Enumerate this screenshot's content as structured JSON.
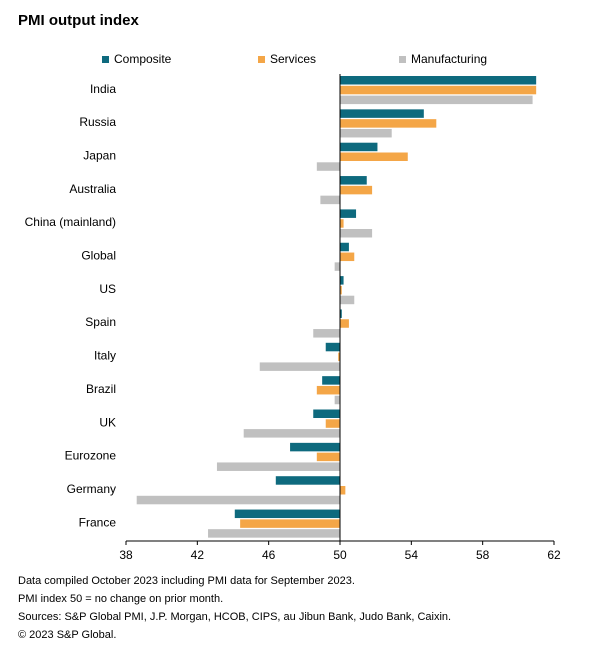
{
  "title": "PMI output index",
  "colors": {
    "composite": "#0e6a7e",
    "services": "#f4a647",
    "manufacturing": "#c0c0c0",
    "axis": "#000000"
  },
  "chart_data": {
    "type": "bar",
    "orientation": "horizontal",
    "title": "PMI output index",
    "categories": [
      "India",
      "Russia",
      "Japan",
      "Australia",
      "China (mainland)",
      "Global",
      "US",
      "Spain",
      "Italy",
      "Brazil",
      "UK",
      "Eurozone",
      "Germany",
      "France"
    ],
    "series": [
      {
        "name": "Composite",
        "values": [
          61.0,
          54.7,
          52.1,
          51.5,
          50.9,
          50.5,
          50.2,
          50.1,
          49.2,
          49.0,
          48.5,
          47.2,
          46.4,
          44.1
        ]
      },
      {
        "name": "Services",
        "values": [
          61.0,
          55.4,
          53.8,
          51.8,
          50.2,
          50.8,
          50.1,
          50.5,
          49.9,
          48.7,
          49.2,
          48.7,
          50.3,
          44.4
        ]
      },
      {
        "name": "Manufacturing",
        "values": [
          60.8,
          52.9,
          48.7,
          48.9,
          51.8,
          49.7,
          50.8,
          48.5,
          45.5,
          49.7,
          44.6,
          43.1,
          38.6,
          42.6
        ]
      }
    ],
    "xlim": [
      38,
      62
    ],
    "xticks": [
      "38",
      "42",
      "46",
      "50",
      "54",
      "58",
      "62"
    ],
    "baseline": 50,
    "legend_position": "top",
    "grid": false
  },
  "notes": [
    "Data compiled October 2023 including PMI data for September 2023.",
    "PMI index 50 = no change on prior month.",
    "Sources: S&P Global PMI, J.P. Morgan, HCOB, CIPS, au Jibun Bank, Judo Bank, Caixin.",
    "© 2023 S&P Global."
  ]
}
